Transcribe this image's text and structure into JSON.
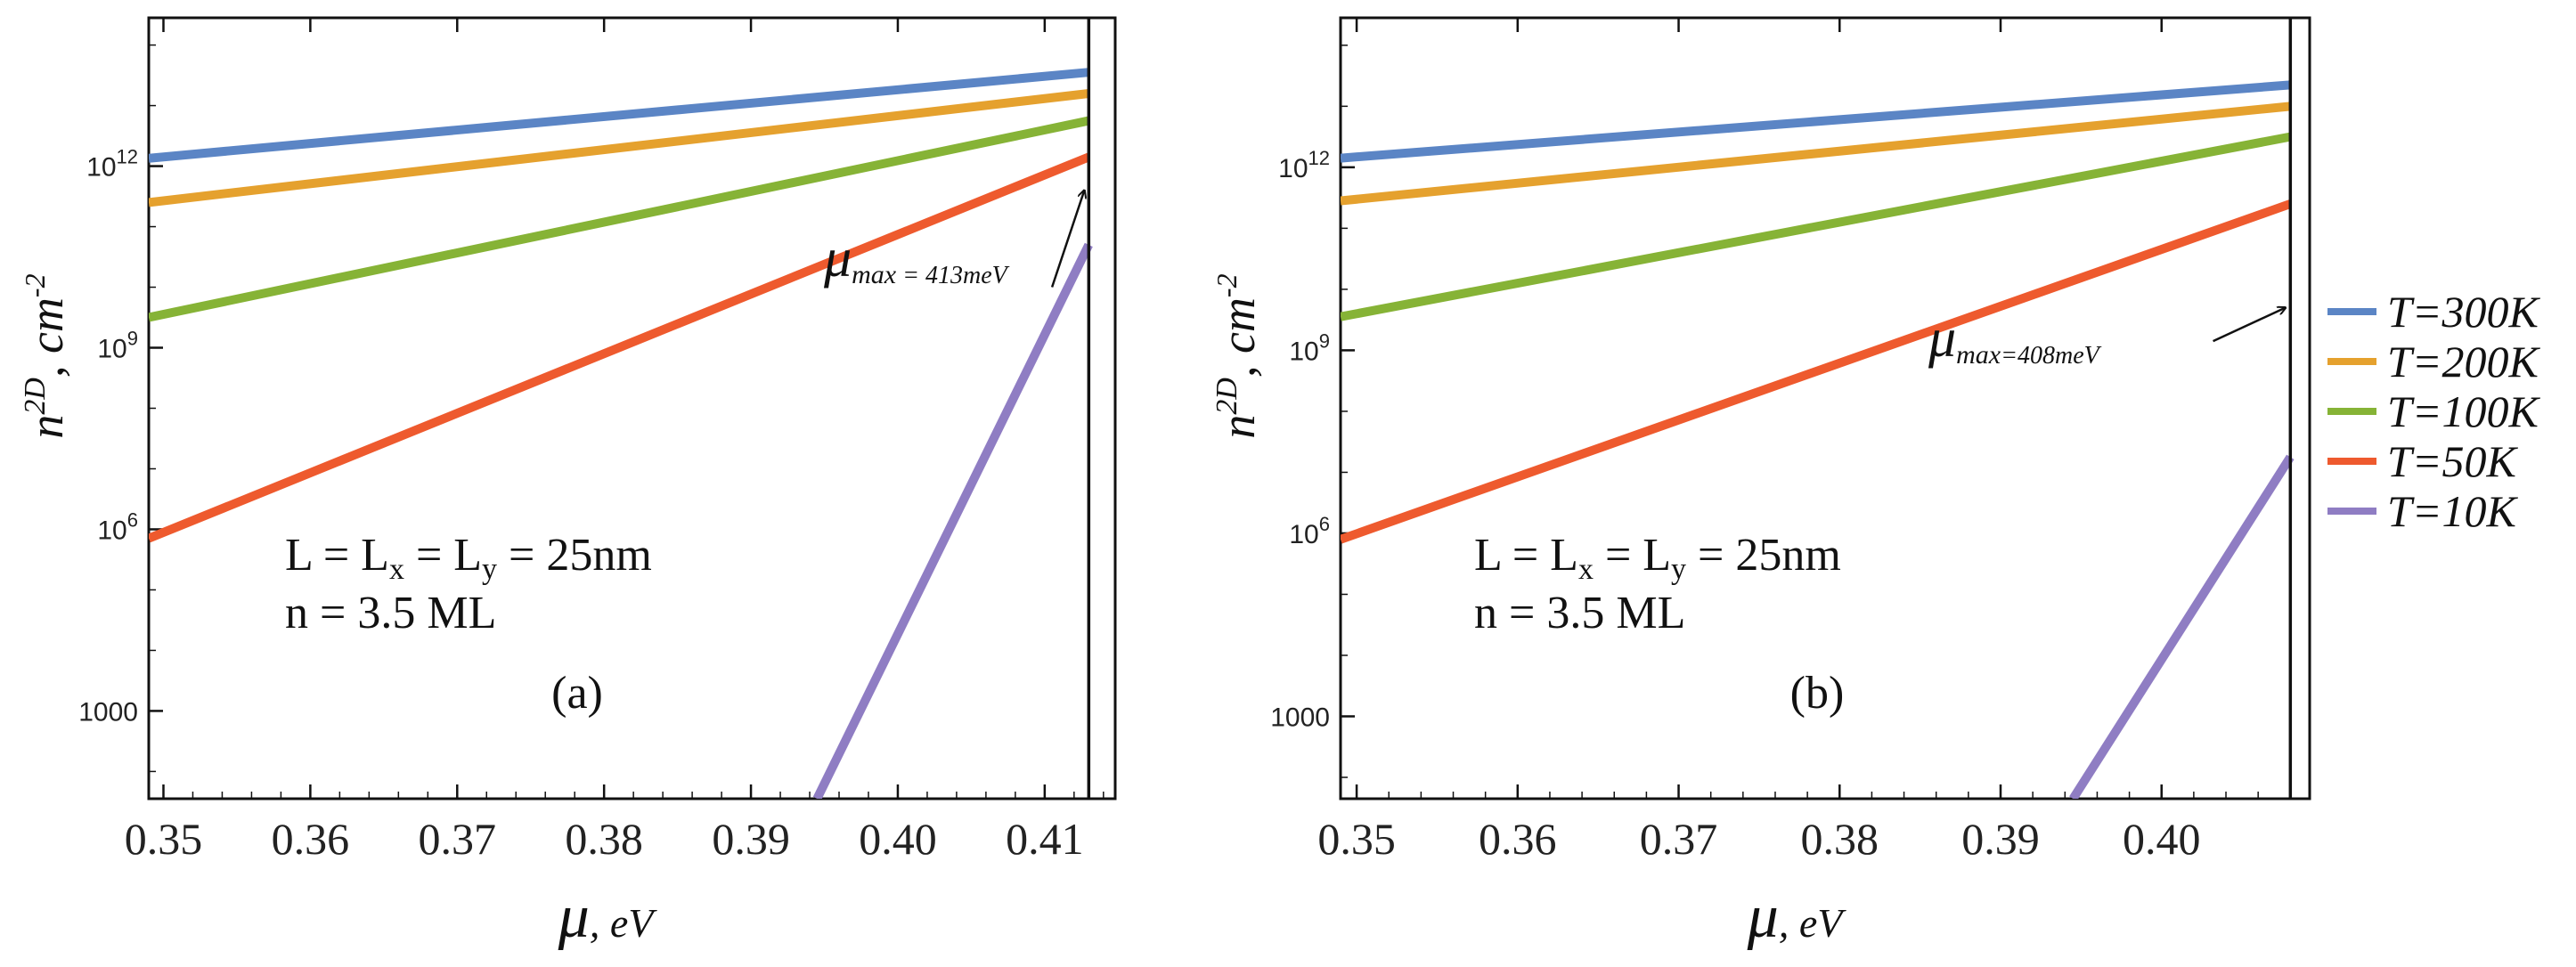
{
  "colors": {
    "T300": "#5B85C5",
    "T200": "#E5A12E",
    "T100": "#86B336",
    "T50": "#EE5A2E",
    "T10": "#8F7DC3"
  },
  "legend": [
    {
      "key": "T300",
      "label": "T=300K"
    },
    {
      "key": "T200",
      "label": "T=200K"
    },
    {
      "key": "T100",
      "label": "T=100K"
    },
    {
      "key": "T50",
      "label": "T=50K"
    },
    {
      "key": "T10",
      "label": "T=10K"
    }
  ],
  "chart_data": [
    {
      "type": "line",
      "panel": "(a)",
      "xlabel": "μ, eV",
      "xlabel_mu": "μ",
      "xlabel_unit": ", eV",
      "ylabel_main": "n",
      "ylabel_sup": "2D",
      "ylabel_unit": ", cm",
      "ylabel_unit_sup": "-2",
      "yscale": "log10",
      "xlim": [
        0.349,
        0.4148
      ],
      "ylim_log10": [
        1.55,
        14.45
      ],
      "xticks": [
        0.35,
        0.36,
        0.37,
        0.38,
        0.39,
        0.4,
        0.41
      ],
      "xtick_labels": [
        "0.35",
        "0.36",
        "0.37",
        "0.38",
        "0.39",
        "0.40",
        "0.41"
      ],
      "yticks": [
        {
          "log": 3,
          "base": "1000",
          "exp": ""
        },
        {
          "log": 6,
          "base": "10",
          "exp": "6"
        },
        {
          "log": 9,
          "base": "10",
          "exp": "9"
        },
        {
          "log": 12,
          "base": "10",
          "exp": "12"
        }
      ],
      "vline_x": 0.413,
      "mu_max_symbol": "μ",
      "mu_max_sub": "max",
      "mu_max_value": " = 413meV",
      "arrow_from": [
        0.4105,
        10.0
      ],
      "arrow_to": [
        0.4127,
        11.6
      ],
      "annotation_lines": [
        "L = L",
        "x",
        " = L",
        "y",
        " = 25nm"
      ],
      "annotation_line2": "n = 3.5 ML",
      "series": [
        {
          "key": "T300",
          "name": "T=300K",
          "x": [
            0.349,
            0.413
          ],
          "log10_y": [
            12.13,
            13.55
          ]
        },
        {
          "key": "T200",
          "name": "T=200K",
          "x": [
            0.349,
            0.413
          ],
          "log10_y": [
            11.4,
            13.2
          ]
        },
        {
          "key": "T100",
          "name": "T=100K",
          "x": [
            0.349,
            0.413
          ],
          "log10_y": [
            9.5,
            12.75
          ]
        },
        {
          "key": "T50",
          "name": "T=50K",
          "x": [
            0.349,
            0.413
          ],
          "log10_y": [
            5.85,
            12.15
          ]
        },
        {
          "key": "T10",
          "name": "T=10K",
          "x": [
            0.3945,
            0.413
          ],
          "log10_y": [
            1.55,
            10.7
          ]
        }
      ]
    },
    {
      "type": "line",
      "panel": "(b)",
      "xlabel": "μ, eV",
      "xlabel_mu": "μ",
      "xlabel_unit": ", eV",
      "ylabel_main": "n",
      "ylabel_sup": "2D",
      "ylabel_unit": ", cm",
      "ylabel_unit_sup": "-2",
      "yscale": "log10",
      "xlim": [
        0.349,
        0.4092
      ],
      "ylim_log10": [
        1.65,
        14.45
      ],
      "xticks": [
        0.35,
        0.36,
        0.37,
        0.38,
        0.39,
        0.4
      ],
      "xtick_labels": [
        "0.35",
        "0.36",
        "0.37",
        "0.38",
        "0.39",
        "0.40"
      ],
      "yticks": [
        {
          "log": 3,
          "base": "1000",
          "exp": ""
        },
        {
          "log": 6,
          "base": "10",
          "exp": "6"
        },
        {
          "log": 9,
          "base": "10",
          "exp": "9"
        },
        {
          "log": 12,
          "base": "10",
          "exp": "12"
        }
      ],
      "vline_x": 0.408,
      "mu_max_symbol": "μ",
      "mu_max_sub": "max",
      "mu_max_value": "=408meV",
      "arrow_from": [
        0.4032,
        9.15
      ],
      "arrow_to": [
        0.4077,
        9.7
      ],
      "annotation_lines": [
        "L = L",
        "x",
        " = L",
        "y",
        " = 25nm"
      ],
      "annotation_line2": "n = 3.5 ML",
      "series": [
        {
          "key": "T300",
          "name": "T=300K",
          "x": [
            0.349,
            0.408
          ],
          "log10_y": [
            12.15,
            13.35
          ]
        },
        {
          "key": "T200",
          "name": "T=200K",
          "x": [
            0.349,
            0.408
          ],
          "log10_y": [
            11.45,
            13.0
          ]
        },
        {
          "key": "T100",
          "name": "T=100K",
          "x": [
            0.349,
            0.408
          ],
          "log10_y": [
            9.55,
            12.5
          ]
        },
        {
          "key": "T50",
          "name": "T=50K",
          "x": [
            0.349,
            0.408
          ],
          "log10_y": [
            5.9,
            11.4
          ]
        },
        {
          "key": "T10",
          "name": "T=10K",
          "x": [
            0.3945,
            0.408
          ],
          "log10_y": [
            1.65,
            7.25
          ]
        }
      ]
    }
  ]
}
